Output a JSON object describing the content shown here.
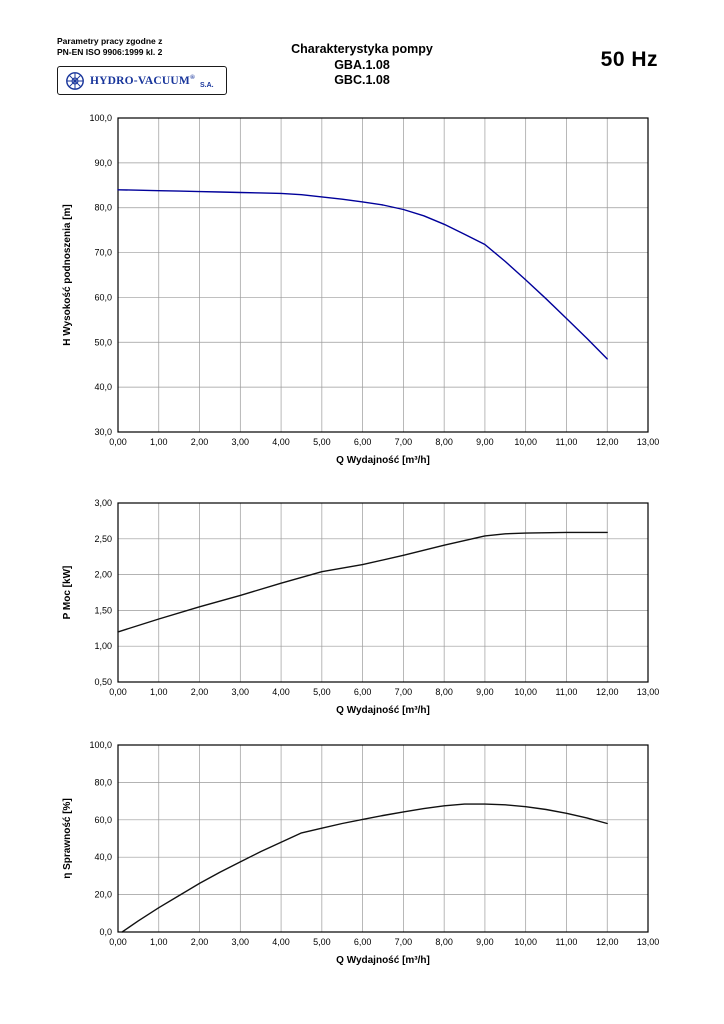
{
  "header": {
    "compliance_line1": "Parametry pracy zgodne z",
    "compliance_line2": "PN-EN ISO 9906:1999 kl. 2",
    "title_line1": "Charakterystyka pompy",
    "title_line2": "GBA.1.08",
    "title_line3": "GBC.1.08",
    "frequency": "50 Hz"
  },
  "logo": {
    "name": "HYDRO-VACUUM",
    "reg_mark": "®",
    "suffix": "S.A.",
    "icon": "flower-rosette-icon",
    "color": "#18359b"
  },
  "chart_data": [
    {
      "type": "line",
      "title": "",
      "xlabel": "Q Wydajność [m³/h]",
      "ylabel": "H  Wysokość podnoszenia [m]",
      "xlim": [
        0,
        13
      ],
      "ylim": [
        30,
        100
      ],
      "grid": true,
      "legend": "none",
      "x_tick_labels": [
        "0,00",
        "1,00",
        "2,00",
        "3,00",
        "4,00",
        "5,00",
        "6,00",
        "7,00",
        "8,00",
        "9,00",
        "10,00",
        "11,00",
        "12,00",
        "13,00"
      ],
      "y_tick_labels": [
        "30,0",
        "40,0",
        "50,0",
        "60,0",
        "70,0",
        "80,0",
        "90,0",
        "100,0"
      ],
      "series": [
        {
          "name": "head-curve",
          "color": "#00009a",
          "x": [
            0,
            0.5,
            1,
            1.5,
            2,
            2.5,
            3,
            3.5,
            4,
            4.5,
            5,
            5.5,
            6,
            6.5,
            7,
            7.5,
            8,
            8.5,
            9,
            9.5,
            10,
            10.5,
            11,
            11.5,
            12
          ],
          "y": [
            84.0,
            83.9,
            83.8,
            83.7,
            83.6,
            83.5,
            83.4,
            83.3,
            83.2,
            82.9,
            82.4,
            81.9,
            81.3,
            80.6,
            79.6,
            78.2,
            76.3,
            74.1,
            71.8,
            68.0,
            63.9,
            59.7,
            55.3,
            50.9,
            46.3
          ]
        }
      ]
    },
    {
      "type": "line",
      "title": "",
      "xlabel": "Q Wydajność [m³/h]",
      "ylabel": "P  Moc [kW]",
      "xlim": [
        0,
        13
      ],
      "ylim": [
        0.5,
        3.0
      ],
      "grid": true,
      "legend": "none",
      "x_tick_labels": [
        "0,00",
        "1,00",
        "2,00",
        "3,00",
        "4,00",
        "5,00",
        "6,00",
        "7,00",
        "8,00",
        "9,00",
        "10,00",
        "11,00",
        "12,00",
        "13,00"
      ],
      "y_tick_labels": [
        "0,50",
        "1,00",
        "1,50",
        "2,00",
        "2,50",
        "3,00"
      ],
      "series": [
        {
          "name": "power-curve",
          "color": "#111111",
          "x": [
            0,
            1,
            2,
            3,
            4,
            5,
            6,
            7,
            8,
            9,
            9.5,
            10,
            11,
            12
          ],
          "y": [
            1.2,
            1.38,
            1.55,
            1.71,
            1.88,
            2.04,
            2.14,
            2.27,
            2.41,
            2.54,
            2.57,
            2.58,
            2.59,
            2.59
          ]
        }
      ]
    },
    {
      "type": "line",
      "title": "",
      "xlabel": "Q Wydajność [m³/h]",
      "ylabel": "η Sprawność [%]",
      "xlim": [
        0,
        13
      ],
      "ylim": [
        0,
        100
      ],
      "grid": true,
      "legend": "none",
      "x_tick_labels": [
        "0,00",
        "1,00",
        "2,00",
        "3,00",
        "4,00",
        "5,00",
        "6,00",
        "7,00",
        "8,00",
        "9,00",
        "10,00",
        "11,00",
        "12,00",
        "13,00"
      ],
      "y_tick_labels": [
        "0,0",
        "20,0",
        "40,0",
        "60,0",
        "80,0",
        "100,0"
      ],
      "series": [
        {
          "name": "efficiency-curve",
          "color": "#111111",
          "x": [
            0.1,
            0.5,
            1,
            1.5,
            2,
            2.5,
            3,
            3.5,
            4,
            4.5,
            5,
            5.5,
            6,
            6.5,
            7,
            7.5,
            8,
            8.5,
            9,
            9.5,
            10,
            10.5,
            11,
            11.5,
            12
          ],
          "y": [
            0,
            6,
            13,
            19.5,
            26,
            32,
            37.5,
            43,
            48,
            53,
            55.5,
            58,
            60.2,
            62.3,
            64.2,
            66.0,
            67.5,
            68.4,
            68.4,
            68.0,
            67.0,
            65.5,
            63.5,
            61.0,
            58.0
          ]
        }
      ]
    }
  ]
}
